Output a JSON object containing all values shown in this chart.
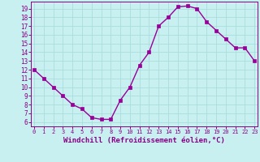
{
  "x": [
    0,
    1,
    2,
    3,
    4,
    5,
    6,
    7,
    8,
    9,
    10,
    11,
    12,
    13,
    14,
    15,
    16,
    17,
    18,
    19,
    20,
    21,
    22,
    23
  ],
  "y": [
    12,
    11,
    10,
    9,
    8,
    7.5,
    6.5,
    6.3,
    6.3,
    8.5,
    10,
    12.5,
    14,
    17,
    18,
    19.2,
    19.3,
    19.0,
    17.5,
    16.5,
    15.5,
    14.5,
    14.5,
    13
  ],
  "line_color": "#990099",
  "marker": "s",
  "markersize": 2.5,
  "linewidth": 1.0,
  "xlabel": "Windchill (Refroidissement éolien,°C)",
  "xlabel_fontsize": 6.5,
  "bg_color": "#c8f0f0",
  "grid_color": "#aadddd",
  "tick_color": "#880088",
  "yticks": [
    6,
    7,
    8,
    9,
    10,
    11,
    12,
    13,
    14,
    15,
    16,
    17,
    18,
    19
  ],
  "xticks": [
    0,
    1,
    2,
    3,
    4,
    5,
    6,
    7,
    8,
    9,
    10,
    11,
    12,
    13,
    14,
    15,
    16,
    17,
    18,
    19,
    20,
    21,
    22,
    23
  ],
  "ylim": [
    5.5,
    19.8
  ],
  "xlim": [
    -0.3,
    23.3
  ]
}
